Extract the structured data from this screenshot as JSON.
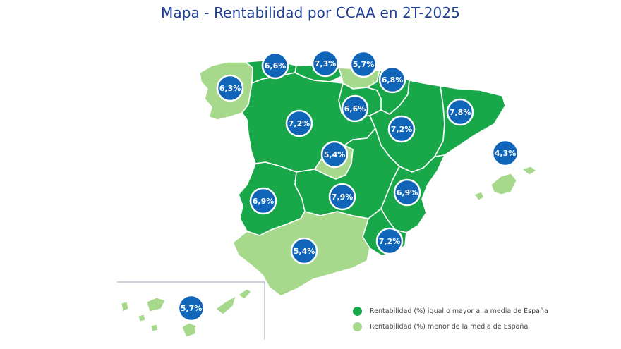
{
  "title": "Mapa - Rentabilidad por CCAA en 2T-2025",
  "colors": {
    "above_average": "#18a84a",
    "below_average": "#a7d98d",
    "badge": "#1165b8",
    "title": "#1f3e96"
  },
  "regions": [
    {
      "name_key": "galicia",
      "value": "6,3%",
      "category": "below"
    },
    {
      "name_key": "asturias",
      "value": "6,6%",
      "category": "above"
    },
    {
      "name_key": "cantabria",
      "value": "7,3%",
      "category": "above"
    },
    {
      "name_key": "pais-vasco",
      "value": "5,7%",
      "category": "below"
    },
    {
      "name_key": "navarra",
      "value": "6,8%",
      "category": "above"
    },
    {
      "name_key": "la-rioja",
      "value": "6,6%",
      "category": "above"
    },
    {
      "name_key": "castilla-leon",
      "value": "7,2%",
      "category": "above"
    },
    {
      "name_key": "aragon",
      "value": "7,2%",
      "category": "above"
    },
    {
      "name_key": "cataluna",
      "value": "7,8%",
      "category": "above"
    },
    {
      "name_key": "madrid",
      "value": "5,4%",
      "category": "below"
    },
    {
      "name_key": "baleares",
      "value": "4,3%",
      "category": "below"
    },
    {
      "name_key": "extremadura",
      "value": "6,9%",
      "category": "above"
    },
    {
      "name_key": "castilla-la-mancha",
      "value": "7,9%",
      "category": "above"
    },
    {
      "name_key": "valencia",
      "value": "6,9%",
      "category": "above"
    },
    {
      "name_key": "murcia",
      "value": "7,2%",
      "category": "above"
    },
    {
      "name_key": "andalucia",
      "value": "5,4%",
      "category": "below"
    },
    {
      "name_key": "canarias",
      "value": "5,7%",
      "category": "below"
    }
  ],
  "legend": [
    {
      "label": "Rentabilidad (%) igual o mayor a la media de España",
      "category": "above"
    },
    {
      "label": "Rentabilidad (%) menor de la media de España",
      "category": "below"
    }
  ]
}
